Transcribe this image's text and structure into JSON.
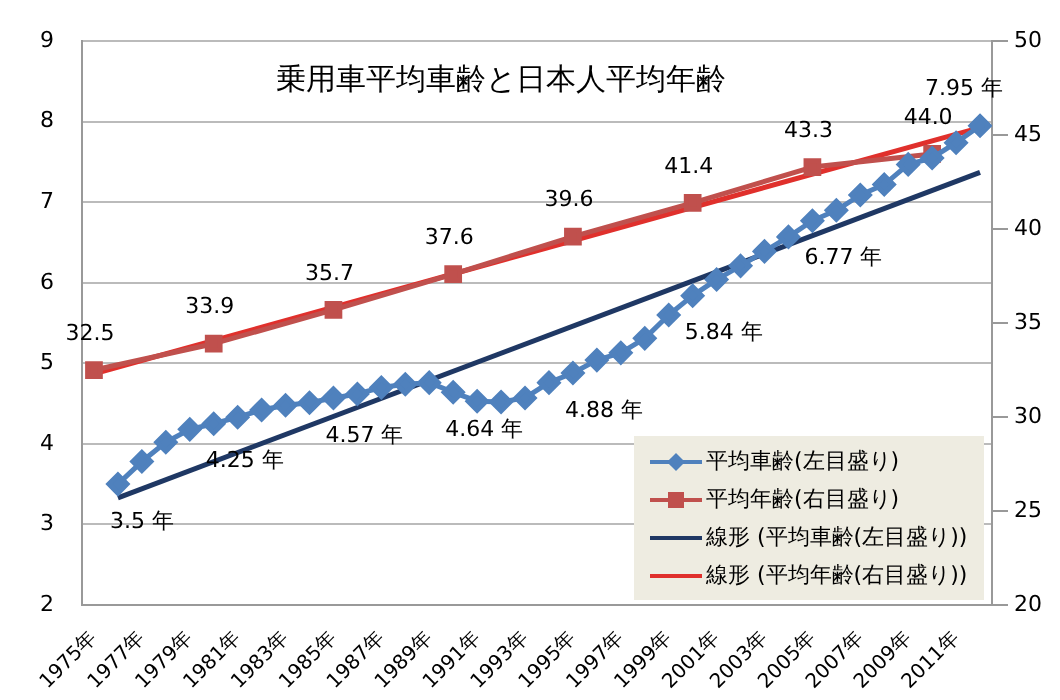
{
  "chart_data": {
    "type": "line",
    "title": "乗用車平均車齢と日本人平均年齢",
    "xlim": [
      1974.5,
      2012.5
    ],
    "xticks": [
      {
        "value": 1975,
        "label": "1975年"
      },
      {
        "value": 1977,
        "label": "1977年"
      },
      {
        "value": 1979,
        "label": "1979年"
      },
      {
        "value": 1981,
        "label": "1981年"
      },
      {
        "value": 1983,
        "label": "1983年"
      },
      {
        "value": 1985,
        "label": "1985年"
      },
      {
        "value": 1987,
        "label": "1987年"
      },
      {
        "value": 1989,
        "label": "1989年"
      },
      {
        "value": 1991,
        "label": "1991年"
      },
      {
        "value": 1993,
        "label": "1993年"
      },
      {
        "value": 1995,
        "label": "1995年"
      },
      {
        "value": 1997,
        "label": "1997年"
      },
      {
        "value": 1999,
        "label": "1999年"
      },
      {
        "value": 2001,
        "label": "2001年"
      },
      {
        "value": 2003,
        "label": "2003年"
      },
      {
        "value": 2005,
        "label": "2005年"
      },
      {
        "value": 2007,
        "label": "2007年"
      },
      {
        "value": 2009,
        "label": "2009年"
      },
      {
        "value": 2011,
        "label": "2011年"
      }
    ],
    "ylim": [
      2,
      9
    ],
    "yticks": [
      2,
      3,
      4,
      5,
      6,
      7,
      8,
      9
    ],
    "y2lim": [
      20,
      50
    ],
    "y2ticks": [
      20,
      25,
      30,
      35,
      40,
      45,
      50
    ],
    "grid": "y",
    "legend": "bottom right",
    "series": [
      {
        "name": "平均車齢(左目盛り)",
        "color": "#4f81bd",
        "marker": "diamond",
        "x": [
          1976,
          1977,
          1978,
          1979,
          1980,
          1981,
          1982,
          1983,
          1984,
          1985,
          1986,
          1987,
          1988,
          1989,
          1990,
          1991,
          1992,
          1993,
          1994,
          1995,
          1996,
          1997,
          1998,
          1999,
          2000,
          2001,
          2002,
          2003,
          2004,
          2005,
          2006,
          2007,
          2008,
          2009,
          2010,
          2011,
          2012
        ],
        "values": [
          3.5,
          3.78,
          4.02,
          4.18,
          4.25,
          4.33,
          4.42,
          4.48,
          4.51,
          4.57,
          4.62,
          4.7,
          4.74,
          4.76,
          4.64,
          4.53,
          4.52,
          4.57,
          4.76,
          4.88,
          5.04,
          5.13,
          5.31,
          5.6,
          5.84,
          6.04,
          6.21,
          6.39,
          6.57,
          6.77,
          6.9,
          7.09,
          7.22,
          7.47,
          7.55,
          7.74,
          7.95
        ],
        "value_labels": [
          "3.5 年",
          null,
          null,
          null,
          "4.25 年",
          null,
          null,
          null,
          null,
          "4.57 年",
          null,
          null,
          null,
          null,
          "4.64 年",
          null,
          null,
          null,
          null,
          "4.88 年",
          null,
          null,
          null,
          null,
          "5.84 年",
          null,
          null,
          null,
          null,
          "6.77 年",
          null,
          null,
          null,
          null,
          null,
          null,
          "7.95 年"
        ]
      },
      {
        "name": "平均年齢(右目盛り)",
        "color": "#c0504d",
        "marker": "square",
        "axis": "y2",
        "x": [
          1975,
          1980,
          1985,
          1990,
          1995,
          2000,
          2005,
          2010
        ],
        "values": [
          32.5,
          33.9,
          35.7,
          37.6,
          39.6,
          41.4,
          43.3,
          44.0
        ],
        "value_labels": [
          "32.5",
          "33.9",
          "35.7",
          "37.6",
          "39.6",
          "41.4",
          "43.3",
          "44.0"
        ]
      },
      {
        "name": "線形 (平均車齢(左目盛り))",
        "color": "#1f3864",
        "marker": "none",
        "x": [
          1976,
          2012
        ],
        "values": [
          3.33,
          7.37
        ]
      },
      {
        "name": "線形 (平均年齢(右目盛り))",
        "color": "#e0302c",
        "marker": "none",
        "axis": "y2",
        "x": [
          1975,
          2012
        ],
        "values": [
          32.3,
          45.4
        ]
      }
    ]
  }
}
